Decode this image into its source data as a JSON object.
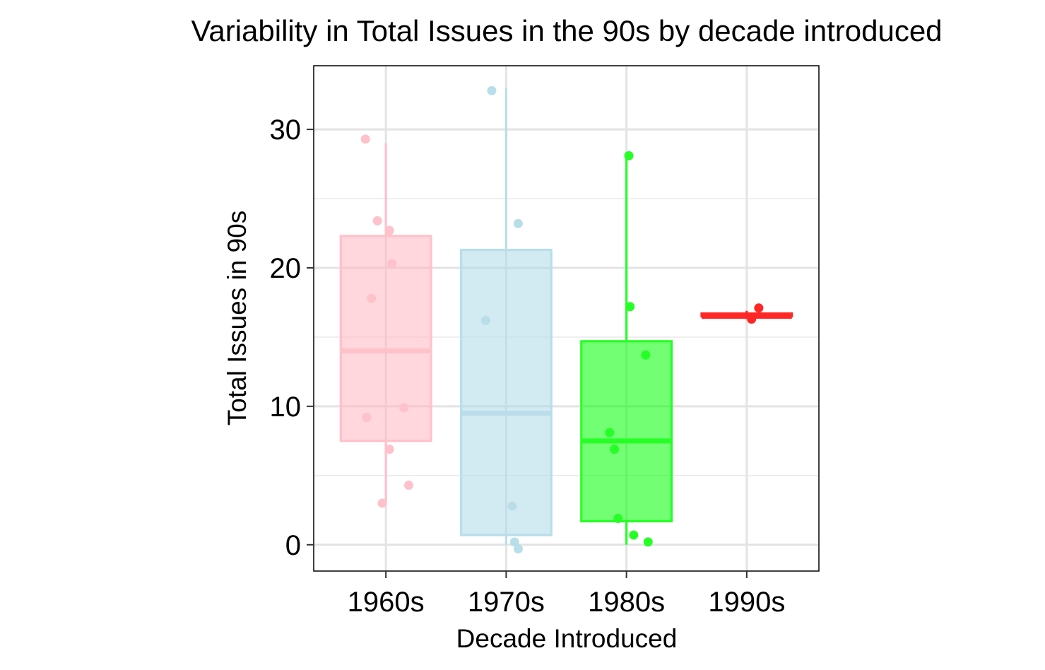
{
  "chart_data": {
    "type": "box",
    "title": "Variability in Total Issues in the 90s by decade introduced",
    "xlabel": "Decade Introduced",
    "ylabel": "Total Issues in 90s",
    "ylim": [
      -1.9,
      34.6
    ],
    "yticks": [
      0,
      10,
      20,
      30
    ],
    "grid": true,
    "legend": "none",
    "categories": [
      "1960s",
      "1970s",
      "1980s",
      "1990s"
    ],
    "boxes": [
      {
        "category": "1960s",
        "color": "#ffb6c1",
        "q1": 7.5,
        "median": 14,
        "q3": 22.3,
        "whisker_low": 3,
        "whisker_high": 29,
        "points": [
          {
            "x": -0.17,
            "y": 29.3
          },
          {
            "x": -0.07,
            "y": 23.4
          },
          {
            "x": 0.03,
            "y": 22.7
          },
          {
            "x": 0.05,
            "y": 20.3
          },
          {
            "x": -0.12,
            "y": 17.8
          },
          {
            "x": 0.15,
            "y": 9.9
          },
          {
            "x": -0.16,
            "y": 9.2
          },
          {
            "x": 0.03,
            "y": 6.9
          },
          {
            "x": 0.19,
            "y": 4.3
          },
          {
            "x": -0.03,
            "y": 3.0
          }
        ]
      },
      {
        "category": "1970s",
        "color": "#add8e6",
        "q1": 0.7,
        "median": 9.5,
        "q3": 21.3,
        "whisker_low": 0,
        "whisker_high": 33,
        "points": [
          {
            "x": -0.12,
            "y": 32.8
          },
          {
            "x": 0.1,
            "y": 23.2
          },
          {
            "x": -0.17,
            "y": 16.2
          },
          {
            "x": 0.05,
            "y": 2.8
          },
          {
            "x": 0.07,
            "y": 0.2
          },
          {
            "x": 0.1,
            "y": -0.3
          }
        ]
      },
      {
        "category": "1980s",
        "color": "#00ff00",
        "q1": 1.7,
        "median": 7.5,
        "q3": 14.7,
        "whisker_low": 0,
        "whisker_high": 28,
        "points": [
          {
            "x": 0.02,
            "y": 28.1
          },
          {
            "x": 0.03,
            "y": 17.2
          },
          {
            "x": 0.16,
            "y": 13.7
          },
          {
            "x": -0.14,
            "y": 8.1
          },
          {
            "x": -0.1,
            "y": 6.9
          },
          {
            "x": -0.07,
            "y": 1.9
          },
          {
            "x": 0.06,
            "y": 0.7
          },
          {
            "x": 0.18,
            "y": 0.2
          }
        ]
      },
      {
        "category": "1990s",
        "color": "#ff0000",
        "q1": 16.5,
        "median": 16.5,
        "q3": 16.7,
        "whisker_low": 16.3,
        "whisker_high": 16.9,
        "points": [
          {
            "x": 0.04,
            "y": 16.3
          },
          {
            "x": 0.1,
            "y": 17.1
          }
        ]
      }
    ]
  }
}
